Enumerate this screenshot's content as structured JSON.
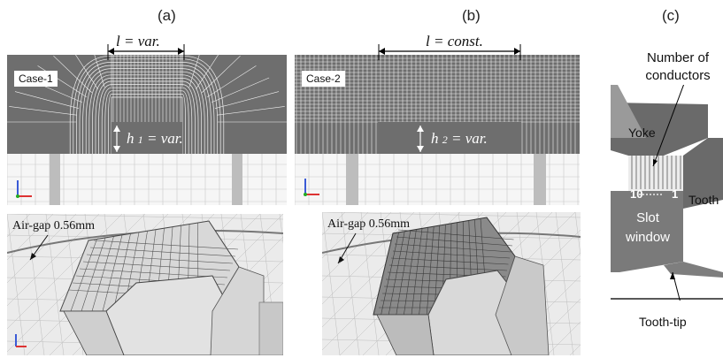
{
  "panels": {
    "a": {
      "label": "(a)",
      "case": "Case-1",
      "length_label": "l = var.",
      "height_label": "h",
      "height_sub": "1",
      "height_rest": "= var.",
      "airgap": "Air-gap 0.56mm"
    },
    "b": {
      "label": "(b)",
      "case": "Case-2",
      "length_label": "l = const.",
      "height_label": "h",
      "height_sub": "2",
      "height_rest": "= var.",
      "airgap": "Air-gap 0.56mm"
    },
    "c": {
      "label": "(c)",
      "conductors_line1": "Number of",
      "conductors_line2": "conductors",
      "yoke": "Yoke",
      "count_left": "10",
      "count_right": "1",
      "tooth": "Tooth",
      "slot_line1": "Slot",
      "slot_line2": "window",
      "tooth_tip": "Tooth-tip"
    }
  },
  "colors": {
    "mesh_bg": "#6e6e6e",
    "mesh_line": "#f2f2f2",
    "light_mesh": "#e9e9e9"
  }
}
